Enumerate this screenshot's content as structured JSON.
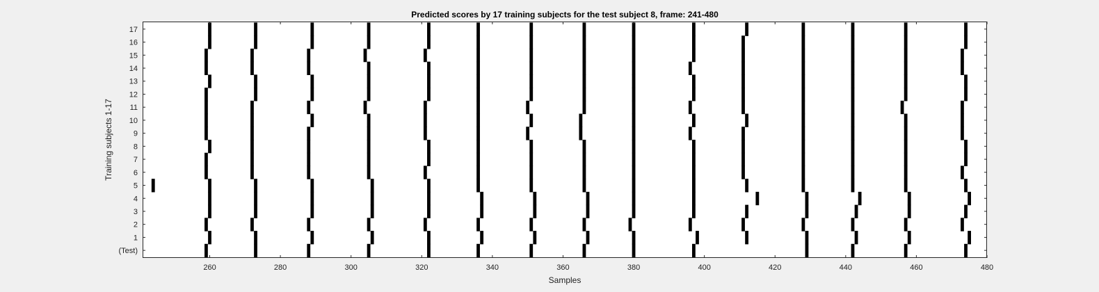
{
  "chart_data": {
    "type": "raster",
    "title": "Predicted scores by 17 training subjects for the test subject 8, frame: 241-480",
    "xlabel": "Samples",
    "ylabel": "Training subjects 1-17",
    "xlim": [
      241,
      480
    ],
    "x_ticks": [
      260,
      280,
      300,
      320,
      340,
      360,
      380,
      400,
      420,
      440,
      460,
      480
    ],
    "y_tick_labels": [
      "(Test)",
      "1",
      "2",
      "3",
      "4",
      "5",
      "6",
      "7",
      "8",
      "9",
      "10",
      "11",
      "12",
      "13",
      "14",
      "15",
      "16",
      "17"
    ],
    "grid": false,
    "legend": "none",
    "mark_color": "#000000",
    "rows": [
      {
        "label": "(Test)",
        "events": [
          259,
          273,
          288,
          305,
          322,
          336,
          351,
          366,
          380,
          397,
          429,
          442,
          457,
          474
        ]
      },
      {
        "label": "1",
        "events": [
          260,
          273,
          289,
          306,
          322,
          337,
          352,
          367,
          380,
          398,
          412,
          429,
          443,
          458,
          475
        ]
      },
      {
        "label": "2",
        "events": [
          259,
          272,
          288,
          305,
          321,
          336,
          351,
          366,
          379,
          396,
          411,
          428,
          442,
          457,
          473
        ]
      },
      {
        "label": "3",
        "events": [
          260,
          273,
          289,
          306,
          322,
          337,
          352,
          367,
          380,
          397,
          412,
          429,
          443,
          458,
          474
        ]
      },
      {
        "label": "4",
        "events": [
          260,
          273,
          289,
          306,
          322,
          337,
          352,
          367,
          380,
          397,
          415,
          429,
          444,
          458,
          475
        ]
      },
      {
        "label": "5",
        "events": [
          244,
          260,
          273,
          289,
          306,
          322,
          336,
          351,
          366,
          380,
          397,
          412,
          428,
          442,
          457,
          474
        ]
      },
      {
        "label": "6",
        "events": [
          259,
          272,
          288,
          305,
          321,
          336,
          351,
          366,
          380,
          397,
          411,
          428,
          442,
          457,
          473
        ]
      },
      {
        "label": "7",
        "events": [
          259,
          272,
          288,
          305,
          322,
          336,
          351,
          366,
          380,
          397,
          411,
          428,
          442,
          457,
          474
        ]
      },
      {
        "label": "8",
        "events": [
          260,
          272,
          288,
          305,
          322,
          336,
          351,
          366,
          380,
          397,
          411,
          428,
          442,
          457,
          474
        ]
      },
      {
        "label": "9",
        "events": [
          259,
          272,
          288,
          305,
          321,
          336,
          350,
          365,
          380,
          396,
          411,
          428,
          442,
          457,
          473
        ]
      },
      {
        "label": "10",
        "events": [
          259,
          272,
          289,
          305,
          321,
          336,
          351,
          365,
          380,
          397,
          412,
          428,
          442,
          457,
          473
        ]
      },
      {
        "label": "11",
        "events": [
          259,
          272,
          288,
          304,
          321,
          336,
          350,
          366,
          380,
          396,
          411,
          428,
          442,
          456,
          473
        ]
      },
      {
        "label": "12",
        "events": [
          259,
          273,
          289,
          305,
          322,
          336,
          351,
          366,
          380,
          397,
          411,
          428,
          442,
          457,
          474
        ]
      },
      {
        "label": "13",
        "events": [
          260,
          273,
          289,
          305,
          322,
          336,
          351,
          366,
          380,
          397,
          411,
          428,
          442,
          457,
          474
        ]
      },
      {
        "label": "14",
        "events": [
          259,
          272,
          288,
          305,
          322,
          336,
          351,
          366,
          380,
          396,
          411,
          428,
          442,
          457,
          473
        ]
      },
      {
        "label": "15",
        "events": [
          259,
          272,
          288,
          304,
          321,
          336,
          351,
          366,
          380,
          397,
          411,
          428,
          442,
          457,
          473
        ]
      },
      {
        "label": "16",
        "events": [
          260,
          273,
          289,
          305,
          322,
          336,
          351,
          366,
          380,
          397,
          411,
          428,
          442,
          457,
          474
        ]
      },
      {
        "label": "17",
        "events": [
          260,
          273,
          289,
          305,
          322,
          336,
          351,
          366,
          380,
          397,
          412,
          428,
          442,
          457,
          474
        ]
      }
    ]
  }
}
